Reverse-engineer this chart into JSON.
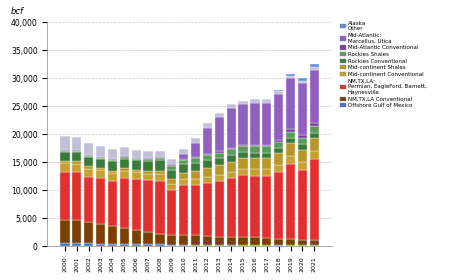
{
  "years": [
    2000,
    2001,
    2002,
    2003,
    2004,
    2005,
    2006,
    2007,
    2008,
    2009,
    2010,
    2011,
    2012,
    2013,
    2014,
    2015,
    2016,
    2017,
    2018,
    2019,
    2020,
    2021
  ],
  "series": {
    "Offshore Gulf of Mexico": [
      600,
      600,
      600,
      500,
      500,
      450,
      450,
      400,
      350,
      300,
      300,
      280,
      270,
      260,
      260,
      250,
      250,
      250,
      200,
      200,
      200,
      200
    ],
    "NM,TX,LA Conventional": [
      4200,
      4200,
      3800,
      3500,
      3200,
      2800,
      2500,
      2200,
      1900,
      1800,
      1800,
      1700,
      1600,
      1500,
      1500,
      1500,
      1400,
      1300,
      1200,
      1100,
      1000,
      900
    ],
    "NM,TX,LA: Permian, EagleFord, Barnett, Haynesville": [
      8500,
      8500,
      8000,
      8200,
      8000,
      9000,
      9000,
      9200,
      9500,
      8000,
      8800,
      9000,
      9500,
      10000,
      10500,
      11000,
      11000,
      11000,
      11800,
      13500,
      12500,
      14500
    ],
    "Mid-continent Conventional": [
      1600,
      1500,
      1500,
      1400,
      1400,
      1300,
      1300,
      1200,
      1200,
      1100,
      1100,
      1100,
      1000,
      1000,
      1100,
      1100,
      1100,
      1200,
      1300,
      1400,
      1400,
      1500
    ],
    "Mid-continent Shales": [
      400,
      400,
      400,
      400,
      400,
      400,
      400,
      400,
      600,
      800,
      1100,
      1400,
      1600,
      1700,
      1800,
      1900,
      2000,
      2000,
      2100,
      2200,
      2200,
      2300
    ],
    "Rockies Conventional": [
      1500,
      1600,
      1600,
      1600,
      1700,
      1700,
      1700,
      1800,
      1800,
      1700,
      1600,
      1500,
      1400,
      1300,
      1200,
      1100,
      1000,
      1000,
      900,
      900,
      900,
      900
    ],
    "Rockies Shales": [
      200,
      200,
      200,
      200,
      200,
      300,
      300,
      400,
      500,
      600,
      700,
      800,
      900,
      1000,
      1100,
      1100,
      1100,
      1100,
      1100,
      1200,
      1200,
      1200
    ],
    "Mid-Atlantic Conventional": [
      150,
      150,
      150,
      150,
      150,
      150,
      150,
      150,
      150,
      150,
      150,
      150,
      150,
      200,
      200,
      200,
      200,
      300,
      400,
      500,
      500,
      500
    ],
    "Mid-Atlantic: Marcellus, Utica": [
      0,
      0,
      0,
      0,
      0,
      0,
      0,
      0,
      0,
      200,
      1000,
      2600,
      4800,
      6200,
      7000,
      7200,
      7500,
      7500,
      8200,
      9000,
      9200,
      9500
    ],
    "Other": [
      2600,
      2400,
      2200,
      2000,
      1800,
      1600,
      1400,
      1200,
      1100,
      1000,
      900,
      800,
      800,
      700,
      700,
      700,
      700,
      700,
      600,
      500,
      500,
      500
    ],
    "Alaska": [
      0,
      0,
      0,
      0,
      0,
      0,
      0,
      0,
      0,
      0,
      0,
      0,
      0,
      0,
      0,
      0,
      0,
      0,
      150,
      300,
      400,
      600
    ]
  },
  "colors": {
    "Offshore Gulf of Mexico": "#4472c4",
    "NM,TX,LA Conventional": "#7b3f00",
    "NM,TX,LA: Permian, EagleFord, Barnett, Haynesville": "#e03030",
    "Mid-continent Conventional": "#c8a030",
    "Mid-continent Shales": "#b8962a",
    "Rockies Conventional": "#3a7a3a",
    "Rockies Shales": "#5a9a5a",
    "Mid-Atlantic Conventional": "#7b3fa0",
    "Mid-Atlantic: Marcellus, Utica": "#9060c0",
    "Other": "#c0c0d8",
    "Alaska": "#6090d0"
  },
  "series_order": [
    "Offshore Gulf of Mexico",
    "NM,TX,LA Conventional",
    "NM,TX,LA: Permian, EagleFord, Barnett, Haynesville",
    "Mid-continent Conventional",
    "Mid-continent Shales",
    "Rockies Conventional",
    "Rockies Shales",
    "Mid-Atlantic Conventional",
    "Mid-Atlantic: Marcellus, Utica",
    "Other",
    "Alaska"
  ],
  "legend_entries": [
    [
      "Alaska",
      "Alaska\nOther"
    ],
    [
      "Mid-Atlantic: Marcellus, Utica",
      "Mid-Atlantic:\nMarcellus, Utica"
    ],
    [
      "Mid-Atlantic Conventional",
      "Mid-Atlantic Conventional"
    ],
    [
      "Rockies Shales",
      "Rockies Shales"
    ],
    [
      "Rockies Conventional",
      "Rockies Conventional"
    ],
    [
      "Mid-continent Shales",
      "Mid-continent Shales"
    ],
    [
      "Mid-continent Conventional",
      "Mid-continent Conventional"
    ],
    [
      "NM,TX,LA: Permian, EagleFord, Barnett, Haynesville",
      "NM,TX,LA:\nPermian, EagleFord, Barnett,\nHaynesville"
    ],
    [
      "NM,TX,LA Conventional",
      "NM,TX,LA Conventional"
    ],
    [
      "Offshore Gulf of Mexico",
      "Offshore Gulf of Mexico"
    ]
  ],
  "ylabel": "bcf",
  "ylim": [
    0,
    40000
  ],
  "yticks": [
    0,
    5000,
    10000,
    15000,
    20000,
    25000,
    30000,
    35000,
    40000
  ],
  "background_color": "#ffffff",
  "grid_color": "#c8c8c8"
}
